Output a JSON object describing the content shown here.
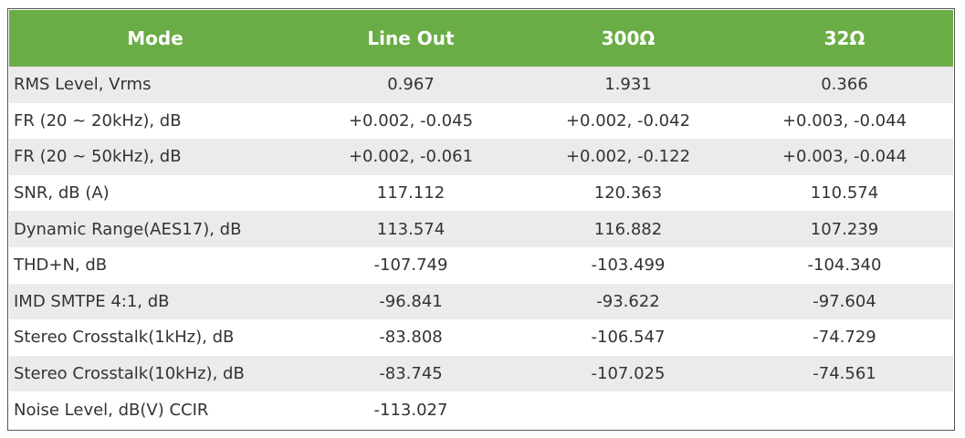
{
  "table": {
    "header": [
      "Mode",
      "Line Out",
      "300Ω",
      "32Ω"
    ],
    "rows": [
      [
        "RMS Level, Vrms",
        "0.967",
        "1.931",
        "0.366"
      ],
      [
        "FR (20 ~ 20kHz), dB",
        "+0.002, -0.045",
        "+0.002, -0.042",
        "+0.003, -0.044"
      ],
      [
        "FR (20 ~ 50kHz), dB",
        "+0.002, -0.061",
        "+0.002, -0.122",
        "+0.003, -0.044"
      ],
      [
        "SNR, dB (A)",
        "117.112",
        "120.363",
        "110.574"
      ],
      [
        "Dynamic Range(AES17), dB",
        "113.574",
        "116.882",
        "107.239"
      ],
      [
        "THD+N, dB",
        "-107.749",
        "-103.499",
        "-104.340"
      ],
      [
        "IMD SMTPE 4:1, dB",
        "-96.841",
        "-93.622",
        "-97.604"
      ],
      [
        "Stereo Crosstalk(1kHz), dB",
        "-83.808",
        "-106.547",
        "-74.729"
      ],
      [
        "Stereo Crosstalk(10kHz), dB",
        "-83.745",
        "-107.025",
        "-74.561"
      ],
      [
        "Noise Level, dB(V) CCIR",
        "-113.027"
      ]
    ]
  }
}
